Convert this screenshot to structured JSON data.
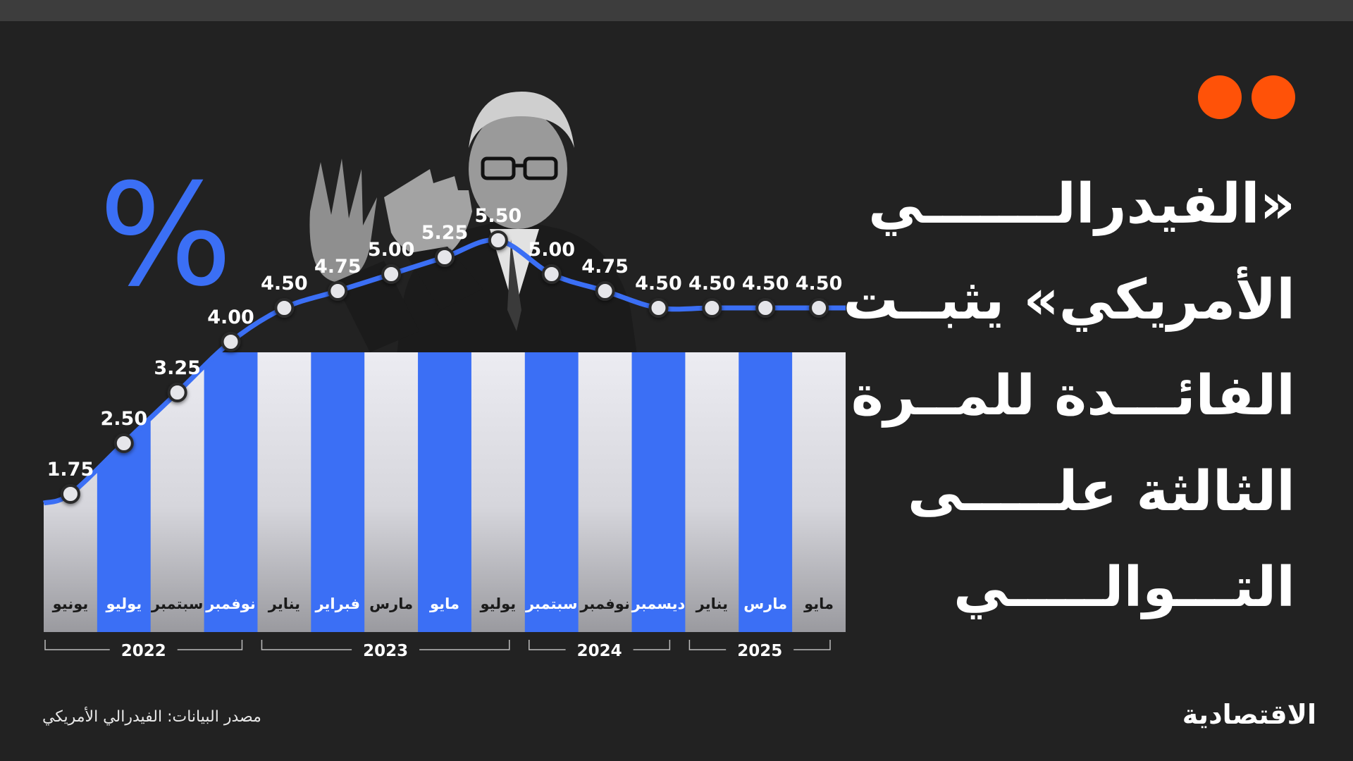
{
  "headline": {
    "lines": [
      "«الفيدرالـــــــي",
      "الأمريكي» يثبــت",
      "الفائـــدة للمــرة",
      "الثالثة علـــــى",
      "التـــوالـــــي"
    ]
  },
  "percent_symbol": "%",
  "source": "مصدر البيانات: الفيدرالي الأمريكي",
  "logo": "الاقتصادية",
  "colors": {
    "background": "#222222",
    "accent_blue": "#3b6ff5",
    "light_bar": "#e9e9ee",
    "brand_orange": "#ff5208",
    "label_text": "#1a1a1a"
  },
  "chart_data": {
    "type": "bar",
    "categories": [
      "يونيو",
      "يوليو",
      "سبتمبر",
      "نوفمبر",
      "يناير",
      "فبراير",
      "مارس",
      "مايو",
      "يوليو",
      "سبتمبر",
      "نوفمبر",
      "ديسمبر",
      "يناير",
      "مارس",
      "مايو"
    ],
    "values": [
      1.75,
      2.5,
      3.25,
      4.0,
      4.5,
      4.75,
      5.0,
      5.25,
      5.5,
      5.0,
      4.75,
      4.5,
      4.5,
      4.5,
      4.5
    ],
    "value_labels": [
      "1.75",
      "2.50",
      "3.25",
      "4.00",
      "4.50",
      "4.75",
      "5.00",
      "5.25",
      "5.50",
      "5.00",
      "4.75",
      "4.50",
      "4.50",
      "4.50",
      "4.50"
    ],
    "years": [
      {
        "label": "2022",
        "first": 0,
        "last": 3
      },
      {
        "label": "2023",
        "first": 4,
        "last": 8
      },
      {
        "label": "2024",
        "first": 9,
        "last": 11
      },
      {
        "label": "2025",
        "first": 12,
        "last": 14
      }
    ],
    "title": "",
    "xlabel": "",
    "ylabel": "",
    "ylim": [
      0,
      5.5
    ],
    "grid": false,
    "legend": "none"
  }
}
